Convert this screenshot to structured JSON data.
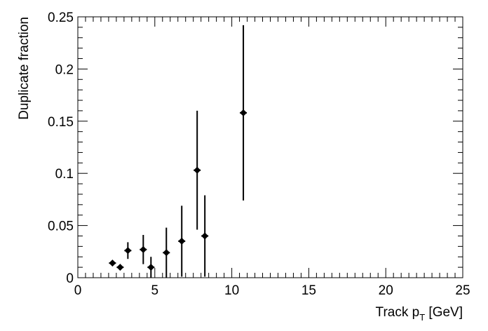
{
  "chart_data": {
    "type": "scatter",
    "title": "",
    "xlabel": "Track p",
    "xlabel_sub": "T",
    "xlabel_unit": " [GeV]",
    "ylabel": "Duplicate fraction",
    "xlim": [
      0,
      25
    ],
    "ylim": [
      0,
      0.25
    ],
    "x_ticks": [
      0,
      5,
      10,
      15,
      20,
      25
    ],
    "x_tick_labels": [
      "0",
      "5",
      "10",
      "15",
      "20",
      "25"
    ],
    "y_ticks": [
      0,
      0.05,
      0.1,
      0.15,
      0.2,
      0.25
    ],
    "y_tick_labels": [
      "0",
      "0.05",
      "0.1",
      "0.15",
      "0.2",
      "0.25"
    ],
    "grid": false,
    "legend": false,
    "marker_color": "#000000",
    "points": [
      {
        "x": 2.25,
        "y": 0.014,
        "err": 0.002
      },
      {
        "x": 2.75,
        "y": 0.01,
        "err": 0.002
      },
      {
        "x": 3.25,
        "y": 0.026,
        "err": 0.008
      },
      {
        "x": 4.25,
        "y": 0.027,
        "err": 0.014
      },
      {
        "x": 4.75,
        "y": 0.01,
        "err": 0.01
      },
      {
        "x": 5.75,
        "y": 0.024,
        "err": 0.024
      },
      {
        "x": 6.75,
        "y": 0.035,
        "err": 0.034
      },
      {
        "x": 7.75,
        "y": 0.103,
        "err": 0.057
      },
      {
        "x": 8.25,
        "y": 0.04,
        "err": 0.039
      },
      {
        "x": 10.75,
        "y": 0.158,
        "err": 0.084
      }
    ]
  }
}
